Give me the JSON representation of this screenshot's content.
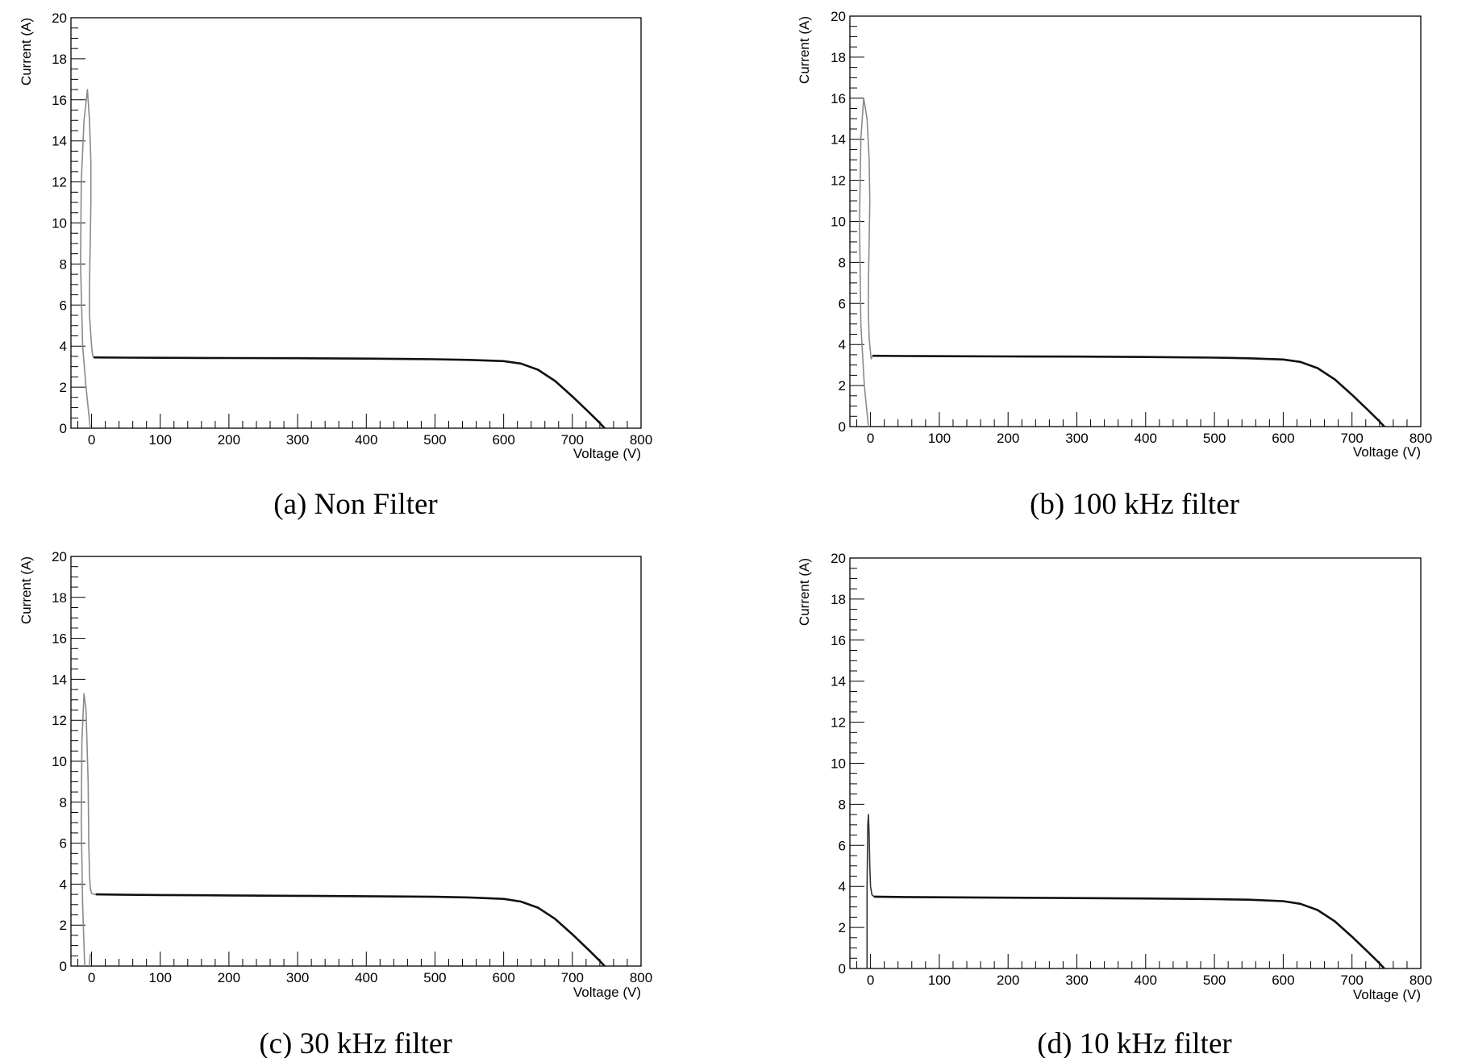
{
  "chart_data": [
    {
      "type": "line",
      "caption": "(a) Non Filter",
      "xlabel": "Voltage (V)",
      "ylabel": "Current (A)",
      "xlim": [
        -30,
        800
      ],
      "ylim": [
        0,
        20
      ],
      "xticks": [
        0,
        100,
        200,
        300,
        400,
        500,
        600,
        700,
        800
      ],
      "yticks": [
        0,
        2,
        4,
        6,
        8,
        10,
        12,
        14,
        16,
        18,
        20
      ],
      "grid": false,
      "series": [
        {
          "role": "transient",
          "color": "#8a8a8a",
          "x": [
            -2,
            -8,
            -13,
            -16,
            -15,
            -11,
            -6,
            -3,
            -1,
            -1,
            -2,
            -3,
            -3,
            -1,
            0,
            1,
            2,
            3
          ],
          "y": [
            0,
            2,
            4,
            8,
            12,
            15,
            16.5,
            15,
            13,
            11,
            9,
            7,
            5.5,
            4.5,
            4,
            3.7,
            3.5,
            3.45
          ]
        },
        {
          "role": "iv-curve",
          "color": "#111111",
          "x": [
            3,
            50,
            100,
            200,
            300,
            400,
            500,
            550,
            600,
            625,
            650,
            675,
            700,
            725,
            740,
            747
          ],
          "y": [
            3.45,
            3.44,
            3.43,
            3.42,
            3.41,
            3.39,
            3.36,
            3.33,
            3.27,
            3.15,
            2.85,
            2.3,
            1.55,
            0.75,
            0.25,
            0
          ]
        }
      ]
    },
    {
      "type": "line",
      "caption": "(b) 100 kHz filter",
      "xlabel": "Voltage (V)",
      "ylabel": "Current (A)",
      "xlim": [
        -30,
        800
      ],
      "ylim": [
        0,
        20
      ],
      "xticks": [
        0,
        100,
        200,
        300,
        400,
        500,
        600,
        700,
        800
      ],
      "yticks": [
        0,
        2,
        4,
        6,
        8,
        10,
        12,
        14,
        16,
        18,
        20
      ],
      "grid": false,
      "series": [
        {
          "role": "transient",
          "color": "#8a8a8a",
          "x": [
            -3,
            -9,
            -14,
            -16,
            -14,
            -10,
            -5,
            -2,
            -1,
            -2,
            -3,
            -3,
            -2,
            0,
            1,
            2,
            3
          ],
          "y": [
            0,
            2,
            5,
            10,
            14,
            16,
            15,
            13,
            11,
            9,
            7,
            5.5,
            4.3,
            3.6,
            3.3,
            3.4,
            3.45
          ]
        },
        {
          "role": "iv-curve",
          "color": "#111111",
          "x": [
            3,
            50,
            100,
            200,
            300,
            400,
            500,
            550,
            600,
            625,
            650,
            675,
            700,
            725,
            740,
            747
          ],
          "y": [
            3.45,
            3.44,
            3.43,
            3.42,
            3.41,
            3.39,
            3.36,
            3.33,
            3.27,
            3.15,
            2.85,
            2.3,
            1.55,
            0.75,
            0.25,
            0
          ]
        }
      ]
    },
    {
      "type": "line",
      "caption": "(c) 30 kHz filter",
      "xlabel": "Voltage (V)",
      "ylabel": "Current (A)",
      "xlim": [
        -30,
        800
      ],
      "ylim": [
        0,
        20
      ],
      "xticks": [
        0,
        100,
        200,
        300,
        400,
        500,
        600,
        700,
        800
      ],
      "yticks": [
        0,
        2,
        4,
        6,
        8,
        10,
        12,
        14,
        16,
        18,
        20
      ],
      "grid": false,
      "series": [
        {
          "role": "transient",
          "color": "#8a8a8a",
          "x": [
            -10,
            -13,
            -15,
            -14,
            -11,
            -8,
            -5,
            -4,
            -3,
            -2,
            0,
            3,
            6
          ],
          "y": [
            0,
            3,
            7,
            11,
            13.3,
            12.5,
            9,
            6,
            4.5,
            3.8,
            3.55,
            3.5,
            3.5
          ]
        },
        {
          "role": "transient-tail",
          "color": "#8a8a8a",
          "x": [
            -3,
            -2
          ],
          "y": [
            0,
            0.6
          ]
        },
        {
          "role": "iv-curve",
          "color": "#111111",
          "x": [
            6,
            50,
            100,
            200,
            300,
            400,
            500,
            550,
            600,
            625,
            650,
            675,
            700,
            725,
            740,
            747
          ],
          "y": [
            3.5,
            3.48,
            3.47,
            3.45,
            3.43,
            3.41,
            3.38,
            3.35,
            3.28,
            3.15,
            2.85,
            2.3,
            1.55,
            0.75,
            0.25,
            0
          ]
        }
      ]
    },
    {
      "type": "line",
      "caption": "(d) 10 kHz filter",
      "xlabel": "Voltage (V)",
      "ylabel": "Current (A)",
      "xlim": [
        -30,
        800
      ],
      "ylim": [
        0,
        20
      ],
      "xticks": [
        0,
        100,
        200,
        300,
        400,
        500,
        600,
        700,
        800
      ],
      "yticks": [
        0,
        2,
        4,
        6,
        8,
        10,
        12,
        14,
        16,
        18,
        20
      ],
      "grid": false,
      "series": [
        {
          "role": "transient",
          "color": "#333333",
          "x": [
            -5,
            -5,
            -4,
            -3,
            -2,
            -1,
            0,
            2,
            5
          ],
          "y": [
            0,
            4,
            7,
            7.5,
            6.5,
            5,
            4,
            3.6,
            3.5
          ]
        },
        {
          "role": "iv-curve",
          "color": "#111111",
          "x": [
            5,
            50,
            100,
            200,
            300,
            400,
            500,
            550,
            600,
            625,
            650,
            675,
            700,
            725,
            740,
            747
          ],
          "y": [
            3.5,
            3.48,
            3.47,
            3.45,
            3.43,
            3.41,
            3.38,
            3.35,
            3.28,
            3.15,
            2.85,
            2.3,
            1.55,
            0.75,
            0.25,
            0
          ]
        }
      ]
    }
  ]
}
